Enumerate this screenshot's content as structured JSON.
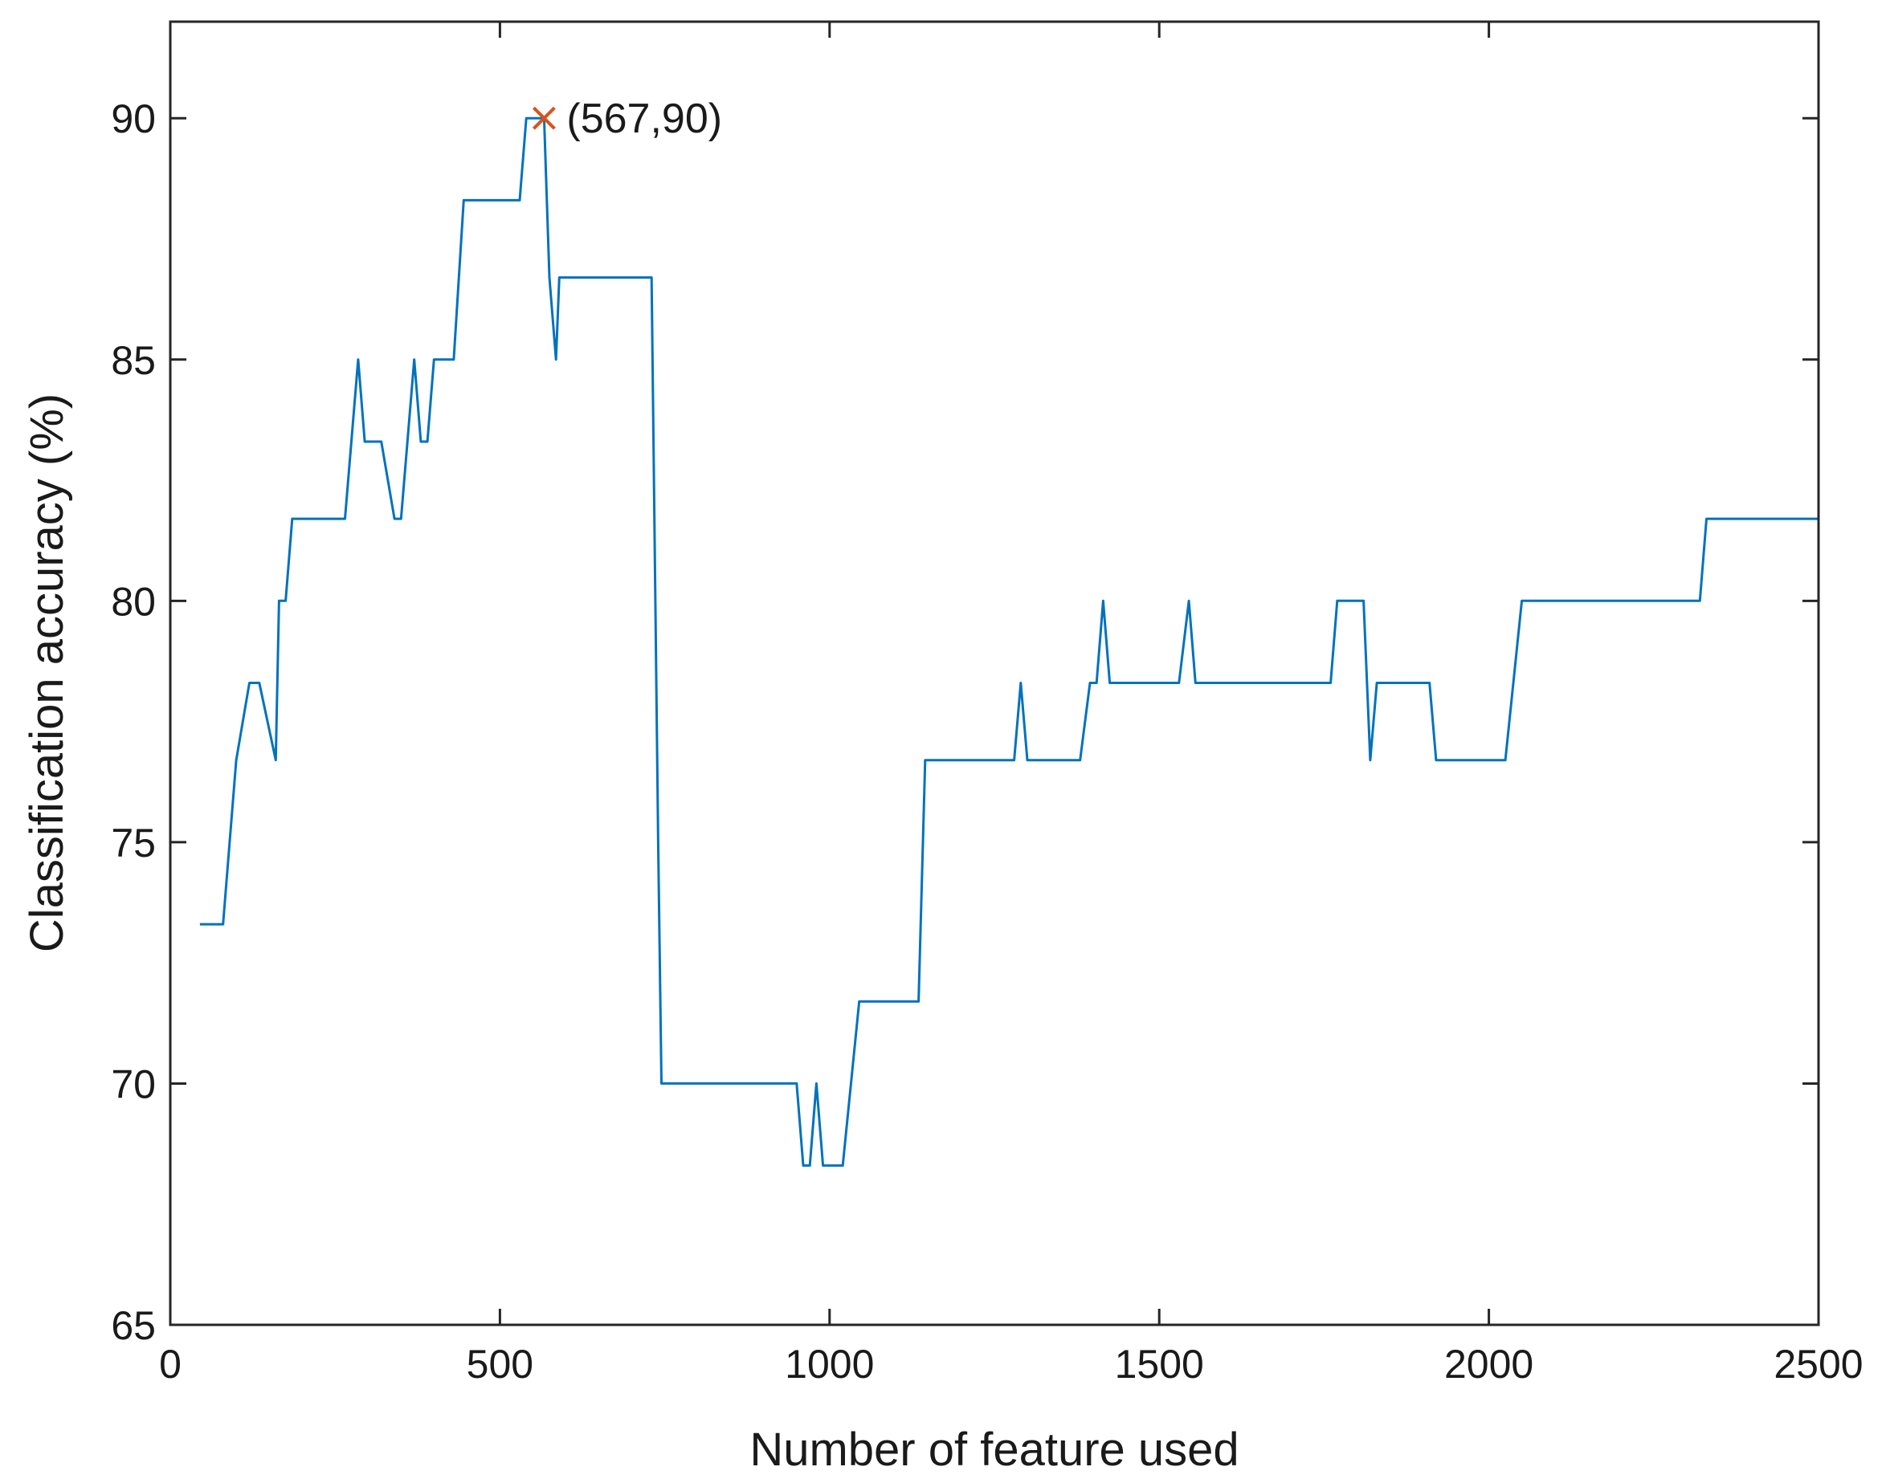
{
  "chart_data": {
    "type": "line",
    "title": "",
    "xlabel": "Number of feature used",
    "ylabel": "Classification accuracy (%)",
    "xlim": [
      0,
      2500
    ],
    "ylim": [
      65,
      92
    ],
    "xticks": [
      0,
      500,
      1000,
      1500,
      2000,
      2500
    ],
    "yticks": [
      65,
      70,
      75,
      80,
      85,
      90
    ],
    "grid": false,
    "legend": "none",
    "colors": {
      "line": "#0072BD",
      "marker": "#D95319",
      "axis": "#262626"
    },
    "series": [
      {
        "x": [
          45,
          80,
          90,
          100,
          120,
          135,
          160,
          165,
          175,
          185,
          230,
          265,
          285,
          295,
          320,
          340,
          350,
          370,
          380,
          390,
          400,
          410,
          430,
          445,
          450,
          480,
          530,
          540,
          565,
          567,
          575,
          585,
          590,
          600,
          700,
          730,
          740,
          745,
          760,
          800,
          900,
          950,
          960,
          970,
          980,
          990,
          1020,
          1045,
          1100,
          1135,
          1145,
          1280,
          1290,
          1300,
          1380,
          1395,
          1405,
          1415,
          1425,
          1530,
          1545,
          1555,
          1600,
          1760,
          1770,
          1810,
          1820,
          1830,
          1850,
          1910,
          1920,
          2000,
          2025,
          2050,
          2320,
          2330,
          2500
        ],
        "y": [
          73.3,
          73.3,
          75.0,
          76.7,
          78.3,
          78.3,
          76.7,
          80.0,
          80.0,
          81.7,
          81.7,
          81.7,
          85.0,
          83.3,
          83.3,
          81.7,
          81.7,
          85.0,
          83.3,
          83.3,
          85.0,
          85.0,
          85.0,
          88.3,
          88.3,
          88.3,
          88.3,
          90.0,
          90.0,
          90.0,
          86.7,
          85.0,
          86.7,
          86.7,
          86.7,
          86.7,
          75.0,
          70.0,
          70.0,
          70.0,
          70.0,
          70.0,
          68.3,
          68.3,
          70.0,
          68.3,
          68.3,
          71.7,
          71.7,
          71.7,
          76.7,
          76.7,
          78.3,
          76.7,
          76.7,
          78.3,
          78.3,
          80.0,
          78.3,
          78.3,
          80.0,
          78.3,
          78.3,
          78.3,
          80.0,
          80.0,
          76.7,
          78.3,
          78.3,
          78.3,
          76.7,
          76.7,
          76.7,
          80.0,
          80.0,
          81.7,
          81.7
        ]
      }
    ],
    "marker": {
      "x": 567,
      "y": 90,
      "symbol": "x"
    },
    "annotations": [
      {
        "text": "(567,90)",
        "x": 567,
        "y": 90
      }
    ]
  }
}
